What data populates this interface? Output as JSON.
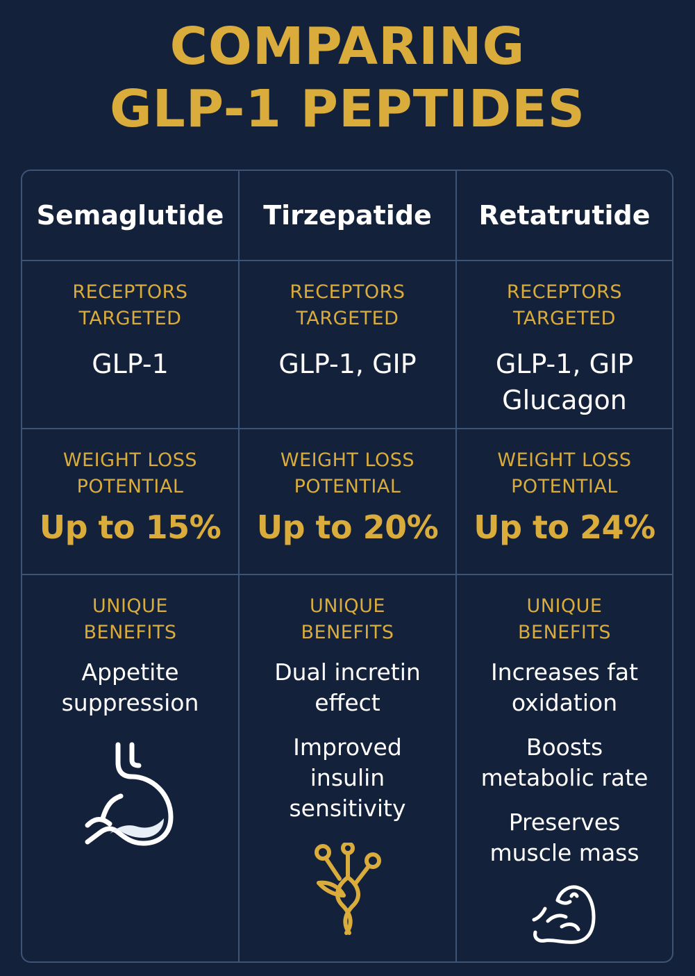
{
  "title": {
    "line1": "COMPARING",
    "line2": "GLP-1 PEPTIDES"
  },
  "colors": {
    "background": "#14213a",
    "gold": "#d9ac3c",
    "text": "#ffffff",
    "grid": "#3e5476"
  },
  "columns": [
    {
      "name": "Semaglutide",
      "receptors_label": [
        "RECEPTORS",
        "TARGETED"
      ],
      "receptors": [
        "GLP-1"
      ],
      "weight_label": [
        "WEIGHT LOSS",
        "POTENTIAL"
      ],
      "weight_value": "Up to 15%",
      "benefits_label": [
        "UNIQUE",
        "BENEFITS"
      ],
      "benefits": [
        [
          "Appetite",
          "suppression"
        ]
      ],
      "icon": "stomach-icon"
    },
    {
      "name": "Tirzepatide",
      "receptors_label": [
        "RECEPTORS",
        "TARGETED"
      ],
      "receptors": [
        "GLP-1, GIP"
      ],
      "weight_label": [
        "WEIGHT LOSS",
        "POTENTIAL"
      ],
      "weight_value": "Up to 20%",
      "benefits_label": [
        "UNIQUE",
        "BENEFITS"
      ],
      "benefits": [
        [
          "Dual incretin",
          "effect"
        ],
        [
          "Improved",
          "insulin",
          "sensitivity"
        ]
      ],
      "icon": "molecule-icon"
    },
    {
      "name": "Retatrutide",
      "receptors_label": [
        "RECEPTORS",
        "TARGETED"
      ],
      "receptors": [
        "GLP-1, GIP",
        "Glucagon"
      ],
      "weight_label": [
        "WEIGHT LOSS",
        "POTENTIAL"
      ],
      "weight_value": "Up to 24%",
      "benefits_label": [
        "UNIQUE",
        "BENEFITS"
      ],
      "benefits": [
        [
          "Increases fat",
          "oxidation"
        ],
        [
          "Boosts",
          "metabolic rate"
        ],
        [
          "Preserves",
          "muscle mass"
        ]
      ],
      "icon": "flexed-arm-icon"
    }
  ]
}
